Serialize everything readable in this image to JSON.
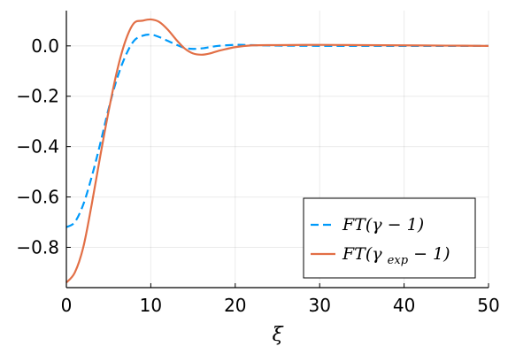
{
  "chart_data": {
    "type": "line",
    "title": "",
    "xlabel": "ξ",
    "ylabel": "",
    "xlim": [
      0,
      50
    ],
    "ylim": [
      -0.96,
      0.14
    ],
    "xticks": [
      0,
      10,
      20,
      30,
      40,
      50
    ],
    "xtick_labels": [
      "0",
      "10",
      "20",
      "30",
      "40",
      "50"
    ],
    "yticks": [
      -0.8,
      -0.6,
      -0.4,
      -0.2,
      0.0
    ],
    "ytick_labels": [
      "−0.8",
      "−0.6",
      "−0.4",
      "−0.2",
      "0.0"
    ],
    "grid": true,
    "legend_position": "bottom-right",
    "series": [
      {
        "name": "FT(γ − 1)",
        "label_main": "FT(γ − 1)",
        "color": "#009AFA",
        "style": "dashed",
        "x": [
          0,
          1,
          2,
          3,
          4,
          5,
          6,
          7,
          8,
          9,
          10,
          11,
          12,
          13,
          14,
          15,
          16,
          17,
          18,
          20,
          22,
          25,
          30,
          35,
          40,
          45,
          50
        ],
        "y": [
          -0.72,
          -0.7,
          -0.63,
          -0.52,
          -0.39,
          -0.25,
          -0.13,
          -0.04,
          0.02,
          0.04,
          0.045,
          0.035,
          0.02,
          0.005,
          -0.008,
          -0.012,
          -0.01,
          -0.005,
          0.0,
          0.004,
          0.003,
          0.001,
          0.0,
          0.0,
          0.0,
          0.0,
          0.0
        ]
      },
      {
        "name": "FT(γexp − 1)",
        "label_main": "FT(γ",
        "label_sub": "exp",
        "label_end": " − 1)",
        "color": "#E26F46",
        "style": "solid",
        "x": [
          0,
          1,
          2,
          3,
          4,
          5,
          6,
          7,
          8,
          9,
          10,
          11,
          12,
          13,
          14,
          15,
          16,
          17,
          18,
          20,
          22,
          25,
          30,
          35,
          40,
          45,
          50
        ],
        "y": [
          -0.94,
          -0.9,
          -0.8,
          -0.63,
          -0.44,
          -0.26,
          -0.1,
          0.02,
          0.09,
          0.1,
          0.105,
          0.095,
          0.065,
          0.025,
          -0.01,
          -0.03,
          -0.035,
          -0.03,
          -0.02,
          -0.005,
          0.002,
          0.003,
          0.004,
          0.003,
          0.002,
          0.001,
          0.0
        ]
      }
    ]
  }
}
